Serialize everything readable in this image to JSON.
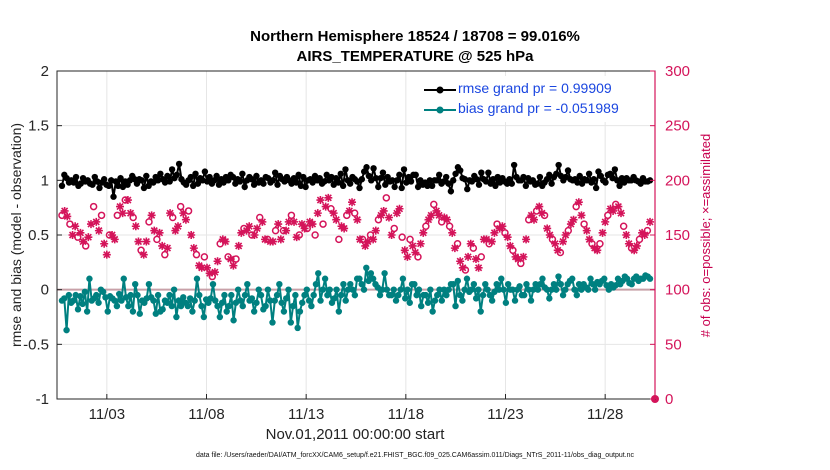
{
  "chart_data": {
    "type": "line",
    "title_line1": "Northern Hemisphere 18524 / 18708 = 99.016%",
    "title_line2": "AIRS_TEMPERATURE @ 525 hPa",
    "xlabel": "Nov.01,2011 00:00:00 start",
    "ylabel_left": "rmse and bias (model - observation)",
    "ylabel_right": "# of obs: o=possible; ×=assimilated",
    "footer": "data file: /Users/raeder/DAI/ATM_forcXX/CAM6_setup/f.e21.FHIST_BGC.f09_025.CAM6assim.011/Diags_NTrS_2011-11/obs_diag_output.nc",
    "x_range_days": [
      0.5,
      30.5
    ],
    "ylim_left": [
      -1,
      2
    ],
    "ylim_right": [
      0,
      300
    ],
    "left_ticks": [
      "-1",
      "-0.5",
      "0",
      "0.5",
      "1",
      "1.5",
      "2"
    ],
    "left_tick_values": [
      -1,
      -0.5,
      0,
      0.5,
      1,
      1.5,
      2
    ],
    "right_ticks": [
      "0",
      "50",
      "100",
      "150",
      "200",
      "250",
      "300"
    ],
    "right_tick_values": [
      0,
      50,
      100,
      150,
      200,
      250,
      300
    ],
    "x_ticks": [
      "11/03",
      "11/08",
      "11/13",
      "11/18",
      "11/23",
      "11/28"
    ],
    "x_tick_days": [
      3,
      8,
      13,
      18,
      23,
      28
    ],
    "colors": {
      "rmse": "#000000",
      "bias": "#008080",
      "obs": "#d4145a",
      "legend_text": "#1a46e0",
      "zero_line": "#c8a0a8",
      "grid": "#e6e6e6"
    },
    "series": [
      {
        "name": "rmse grand pr = 0.99909",
        "values": [
          0.95,
          1.05,
          1.02,
          0.98,
          1.0,
          0.98,
          1.03,
          0.95,
          0.97,
          1.02,
          0.99,
          1.0,
          0.97,
          0.96,
          1.03,
          0.99,
          0.93,
          0.98,
          1.01,
          0.96,
          0.95,
          1.0,
          0.85,
          0.99,
          0.95,
          1.02,
          0.94,
          0.99,
          0.96,
          1.0,
          1.04,
          1.01,
          0.97,
          1.01,
          1.0,
          0.93,
          1.04,
          0.95,
          0.99,
          0.98,
          1.03,
          1.0,
          1.06,
          1.01,
          0.98,
          1.04,
          0.99,
          1.1,
          1.02,
          1.05,
          1.15,
          1.01,
          0.98,
          0.96,
          1.0,
          1.03,
          0.95,
          1.06,
          0.97,
          1.02,
          1.0,
          1.08,
          0.99,
          1.03,
          0.97,
          1.0,
          1.04,
          0.96,
          1.01,
          0.98,
          1.03,
          1.0,
          1.05,
          1.03,
          0.97,
          1.01,
          0.99,
          1.06,
          0.94,
          1.0,
          1.03,
          1.01,
          0.96,
          1.04,
          0.98,
          1.0,
          0.97,
          1.03,
          1.02,
          0.98,
          1.0,
          1.07,
          0.96,
          1.04,
          1.01,
          0.99,
          1.03,
          1.0,
          0.97,
          1.02,
          0.98,
          1.05,
          0.95,
          1.03,
          0.94,
          1.0,
          1.01,
          0.98,
          1.04,
          1.0,
          1.02,
          0.97,
          0.99,
          1.05,
          1.0,
          1.03,
          0.96,
          1.02,
          0.98,
          1.06,
          0.95,
          1.1,
          1.0,
          0.97,
          1.03,
          1.01,
          0.99,
          0.93,
          1.01,
          1.08,
          1.12,
          1.04,
          1.0,
          1.11,
          1.02,
          0.94,
          1.02,
          1.07,
          0.96,
          1.03,
          0.99,
          1.0,
          0.94,
          1.0,
          1.05,
          0.93,
          1.1,
          0.98,
          1.03,
          0.99,
          1.05,
          1.05,
          0.94,
          1.0,
          0.96,
          0.98,
          0.95,
          1.0,
          0.95,
          1.0,
          1.0,
          1.05,
          0.97,
          0.99,
          1.03,
          0.97,
          0.9,
          1.0,
          1.06,
          1.12,
          1.09,
          1.02,
          1.01,
          0.92,
          1.0,
          0.99,
          1.04,
          1.01,
          0.96,
          1.07,
          1.01,
          0.99,
          1.07,
          0.97,
          1.01,
          0.95,
          1.03,
          0.98,
          1.02,
          0.99,
          0.97,
          1.01,
          0.97,
          1.14,
          1.03,
          1.0,
          1.0,
          1.03,
          0.95,
          1.02,
          0.99,
          1.0,
          0.96,
          0.97,
          1.03,
          0.95,
          0.98,
          1.01,
          1.05,
          0.97,
          1.03,
          1.06,
          1.14,
          1.04,
          1.0,
          1.03,
          1.09,
          1.01,
          1.0,
          1.01,
          0.98,
          1.04,
          0.97,
          1.01,
          1.0,
          1.06,
          0.98,
          1.01,
          0.93,
          1.08,
          1.04,
          1.0,
          0.98,
          1.05,
          1.06,
          1.02,
          1.1,
          1.0,
          0.95,
          1.02,
          0.98,
          1.02,
          1.0,
          1.0,
          1.03,
          1.0,
          0.99,
          0.97,
          1.02,
          0.99,
          0.99,
          1.0
        ]
      },
      {
        "name": "bias grand pr = -0.051989",
        "values": [
          -0.1,
          -0.08,
          -0.37,
          -0.05,
          -0.12,
          -0.1,
          -0.05,
          -0.18,
          -0.06,
          -0.13,
          -0.02,
          -0.2,
          0.1,
          -0.1,
          -0.08,
          -0.05,
          -0.12,
          0.0,
          -0.02,
          -0.07,
          -0.2,
          -0.06,
          -0.08,
          -0.1,
          -0.15,
          -0.04,
          -0.1,
          0.1,
          -0.07,
          -0.15,
          -0.05,
          -0.2,
          0.05,
          -0.05,
          -0.22,
          -0.1,
          -0.12,
          -0.08,
          0.05,
          -0.07,
          -0.1,
          -0.22,
          -0.05,
          -0.2,
          -0.18,
          -0.1,
          -0.12,
          -0.05,
          -0.15,
          0.0,
          -0.25,
          -0.1,
          -0.15,
          -0.07,
          -0.12,
          -0.15,
          -0.08,
          -0.2,
          -0.1,
          0.1,
          -0.05,
          -0.15,
          -0.25,
          -0.09,
          -0.12,
          -0.08,
          0.05,
          -0.1,
          -0.15,
          -0.25,
          -0.12,
          -0.05,
          -0.2,
          -0.15,
          -0.05,
          -0.28,
          -0.12,
          0.0,
          -0.1,
          -0.15,
          -0.05,
          0.05,
          -0.1,
          -0.08,
          -0.2,
          -0.12,
          0.0,
          -0.05,
          -0.18,
          -0.15,
          0.0,
          -0.1,
          -0.3,
          -0.1,
          -0.05,
          0.05,
          -0.12,
          -0.2,
          -0.08,
          0.0,
          -0.3,
          -0.15,
          -0.05,
          -0.35,
          -0.2,
          -0.12,
          -0.05,
          0.0,
          -0.1,
          -0.15,
          -0.05,
          0.05,
          0.15,
          -0.1,
          0.0,
          0.1,
          -0.05,
          0.0,
          -0.12,
          -0.08,
          0.0,
          -0.2,
          -0.05,
          0.05,
          -0.1,
          0.0,
          0.05,
          0.0,
          -0.05,
          0.1,
          0.1,
          0.05,
          0.0,
          0.2,
          0.08,
          0.15,
          0.1,
          0.05,
          0.02,
          -0.05,
          0.0,
          0.15,
          0.0,
          -0.05,
          -0.05,
          0.0,
          -0.1,
          -0.05,
          0.0,
          0.1,
          -0.08,
          0.0,
          -0.12,
          0.05,
          0.05,
          -0.05,
          0.0,
          -0.15,
          -0.05,
          -0.05,
          -0.12,
          0.0,
          -0.2,
          -0.1,
          -0.05,
          0.0,
          -0.1,
          0.0,
          -0.05,
          0.0,
          0.05,
          0.05,
          -0.15,
          0.08,
          -0.05,
          -0.1,
          0.0,
          0.1,
          -0.02,
          0.0,
          0.05,
          -0.08,
          0.0,
          -0.2,
          -0.05,
          0.05,
          0.0,
          -0.05,
          -0.1,
          -0.02,
          0.05,
          0.0,
          0.1,
          0.0,
          -0.12,
          0.05,
          0.0,
          0.0,
          -0.1,
          0.0,
          0.03,
          -0.05,
          -0.05,
          0.05,
          0.0,
          -0.1,
          0.0,
          0.05,
          0.0,
          0.05,
          0.1,
          0.02,
          0.0,
          -0.08,
          0.0,
          0.05,
          0.0,
          0.12,
          0.05,
          -0.05,
          0.0,
          0.05,
          0.08,
          0.1,
          0.0,
          -0.05,
          0.05,
          0.0,
          0.05,
          0.02,
          0.0,
          0.1,
          0.05,
          0.0,
          0.07,
          0.05,
          0.08,
          0.1,
          0.04,
          0.0,
          0.05,
          0.02,
          0.04,
          0.1,
          0.05,
          0.08,
          0.12,
          0.1,
          0.06,
          0.05,
          0.1,
          0.12,
          0.08,
          0.1,
          0.1,
          0.13,
          0.12,
          0.1
        ]
      },
      {
        "name": "obs possible / assimilated",
        "values": [
          168,
          172,
          167,
          160,
          150,
          158,
          148,
          152,
          144,
          140,
          148,
          160,
          176,
          162,
          154,
          168,
          142,
          132,
          150,
          150,
          146,
          168,
          176,
          170,
          182,
          182,
          170,
          166,
          158,
          144,
          136,
          132,
          144,
          162,
          168,
          154,
          146,
          152,
          140,
          132,
          138,
          170,
          166,
          154,
          158,
          176,
          170,
          164,
          172,
          150,
          138,
          132,
          122,
          120,
          130,
          120,
          115,
          112,
          116,
          126,
          142,
          146,
          144,
          130,
          128,
          122,
          128,
          140,
          152,
          156,
          154,
          158,
          150,
          150,
          156,
          166,
          162,
          146,
          146,
          144,
          144,
          154,
          160,
          146,
          154,
          154,
          162,
          168,
          162,
          148,
          150,
          160,
          156,
          156,
          162,
          160,
          150,
          170,
          182,
          160,
          176,
          184,
          174,
          170,
          164,
          146,
          158,
          156,
          168,
          172,
          180,
          170,
          164,
          146,
          146,
          140,
          144,
          150,
          146,
          154,
          164,
          168,
          172,
          184,
          166,
          150,
          156,
          170,
          174,
          148,
          136,
          130,
          146,
          140,
          134,
          130,
          142,
          152,
          158,
          164,
          168,
          178,
          172,
          168,
          162,
          166,
          164,
          158,
          152,
          138,
          142,
          126,
          120,
          118,
          130,
          142,
          138,
          128,
          120,
          130,
          146,
          146,
          142,
          144,
          152,
          160,
          156,
          158,
          152,
          148,
          140,
          136,
          130,
          128,
          124,
          130,
          146,
          164,
          168,
          164,
          172,
          176,
          170,
          168,
          156,
          150,
          146,
          142,
          136,
          134,
          144,
          150,
          154,
          160,
          164,
          176,
          180,
          168,
          160,
          154,
          146,
          142,
          138,
          136,
          142,
          152,
          162,
          168,
          174,
          172,
          178,
          176,
          170,
          158,
          150,
          142,
          138,
          136,
          140,
          146,
          152,
          150,
          154,
          162
        ]
      }
    ],
    "obs_sample_positions_days": "generated uniformly at 6-hourly intervals"
  }
}
